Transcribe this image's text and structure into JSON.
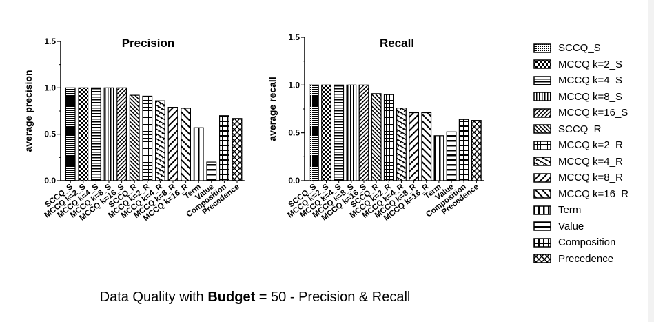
{
  "chart_data": [
    {
      "type": "bar",
      "title": "Precision",
      "ylabel": "average precision",
      "xlabel": "",
      "ylim": [
        0,
        1.5
      ],
      "yticks": [
        "0.0",
        "0.5",
        "1.0",
        "1.5"
      ],
      "categories": [
        "SCCQ_S",
        "MCCQ k=2_S",
        "MCCQ k=4_S",
        "MCCQ k=8_S",
        "MCCQ k=16_S",
        "SCCQ_R",
        "MCCQ k=2_R",
        "MCCQ k=4_R",
        "MCCQ k=8_R",
        "MCCQ k=16_R",
        "Term",
        "Value",
        "Composition",
        "Precedence"
      ],
      "values": [
        1.0,
        1.0,
        1.0,
        1.0,
        1.0,
        0.92,
        0.91,
        0.86,
        0.79,
        0.78,
        0.57,
        0.2,
        0.7,
        0.67
      ],
      "grid": false,
      "legend": "right"
    },
    {
      "type": "bar",
      "title": "Recall",
      "ylabel": "average recall",
      "xlabel": "",
      "ylim": [
        0,
        1.5
      ],
      "yticks": [
        "0.0",
        "0.5",
        "1.0",
        "1.5"
      ],
      "categories": [
        "SCCQ_S",
        "MCCQ k=2_S",
        "MCCQ k=4_S",
        "MCCQ k=8_S",
        "MCCQ k=16_S",
        "SCCQ_R",
        "MCCQ k=2_R",
        "MCCQ k=4_R",
        "MCCQ k=8_R",
        "MCCQ k=16_R",
        "Term",
        "Value",
        "Composition",
        "Precedence"
      ],
      "values": [
        1.0,
        1.0,
        1.0,
        1.0,
        1.0,
        0.91,
        0.9,
        0.76,
        0.71,
        0.71,
        0.47,
        0.51,
        0.64,
        0.63
      ],
      "grid": false,
      "legend": "right"
    }
  ],
  "patterns": [
    "dense",
    "checker",
    "hstripe",
    "vstripe",
    "diag",
    "diag2",
    "grid",
    "diagcheck",
    "diag3",
    "diag4",
    "vstripe2",
    "hstripe2",
    "grid2",
    "xcross"
  ],
  "legend": {
    "items": [
      {
        "label": "SCCQ_S",
        "pattern": "dense"
      },
      {
        "label": "MCCQ k=2_S",
        "pattern": "checker"
      },
      {
        "label": "MCCQ k=4_S",
        "pattern": "hstripe"
      },
      {
        "label": "MCCQ k=8_S",
        "pattern": "vstripe"
      },
      {
        "label": "MCCQ k=16_S",
        "pattern": "diag"
      },
      {
        "label": "SCCQ_R",
        "pattern": "diag2"
      },
      {
        "label": "MCCQ k=2_R",
        "pattern": "grid"
      },
      {
        "label": "MCCQ k=4_R",
        "pattern": "diagcheck"
      },
      {
        "label": "MCCQ k=8_R",
        "pattern": "diag3"
      },
      {
        "label": "MCCQ k=16_R",
        "pattern": "diag4"
      },
      {
        "label": "Term",
        "pattern": "vstripe2"
      },
      {
        "label": "Value",
        "pattern": "hstripe2"
      },
      {
        "label": "Composition",
        "pattern": "grid2"
      },
      {
        "label": "Precedence",
        "pattern": "xcross"
      }
    ]
  },
  "caption": {
    "prefix": "Data Quality with ",
    "bold": "Budget",
    "suffix": " = 50 - Precision & Recall"
  }
}
